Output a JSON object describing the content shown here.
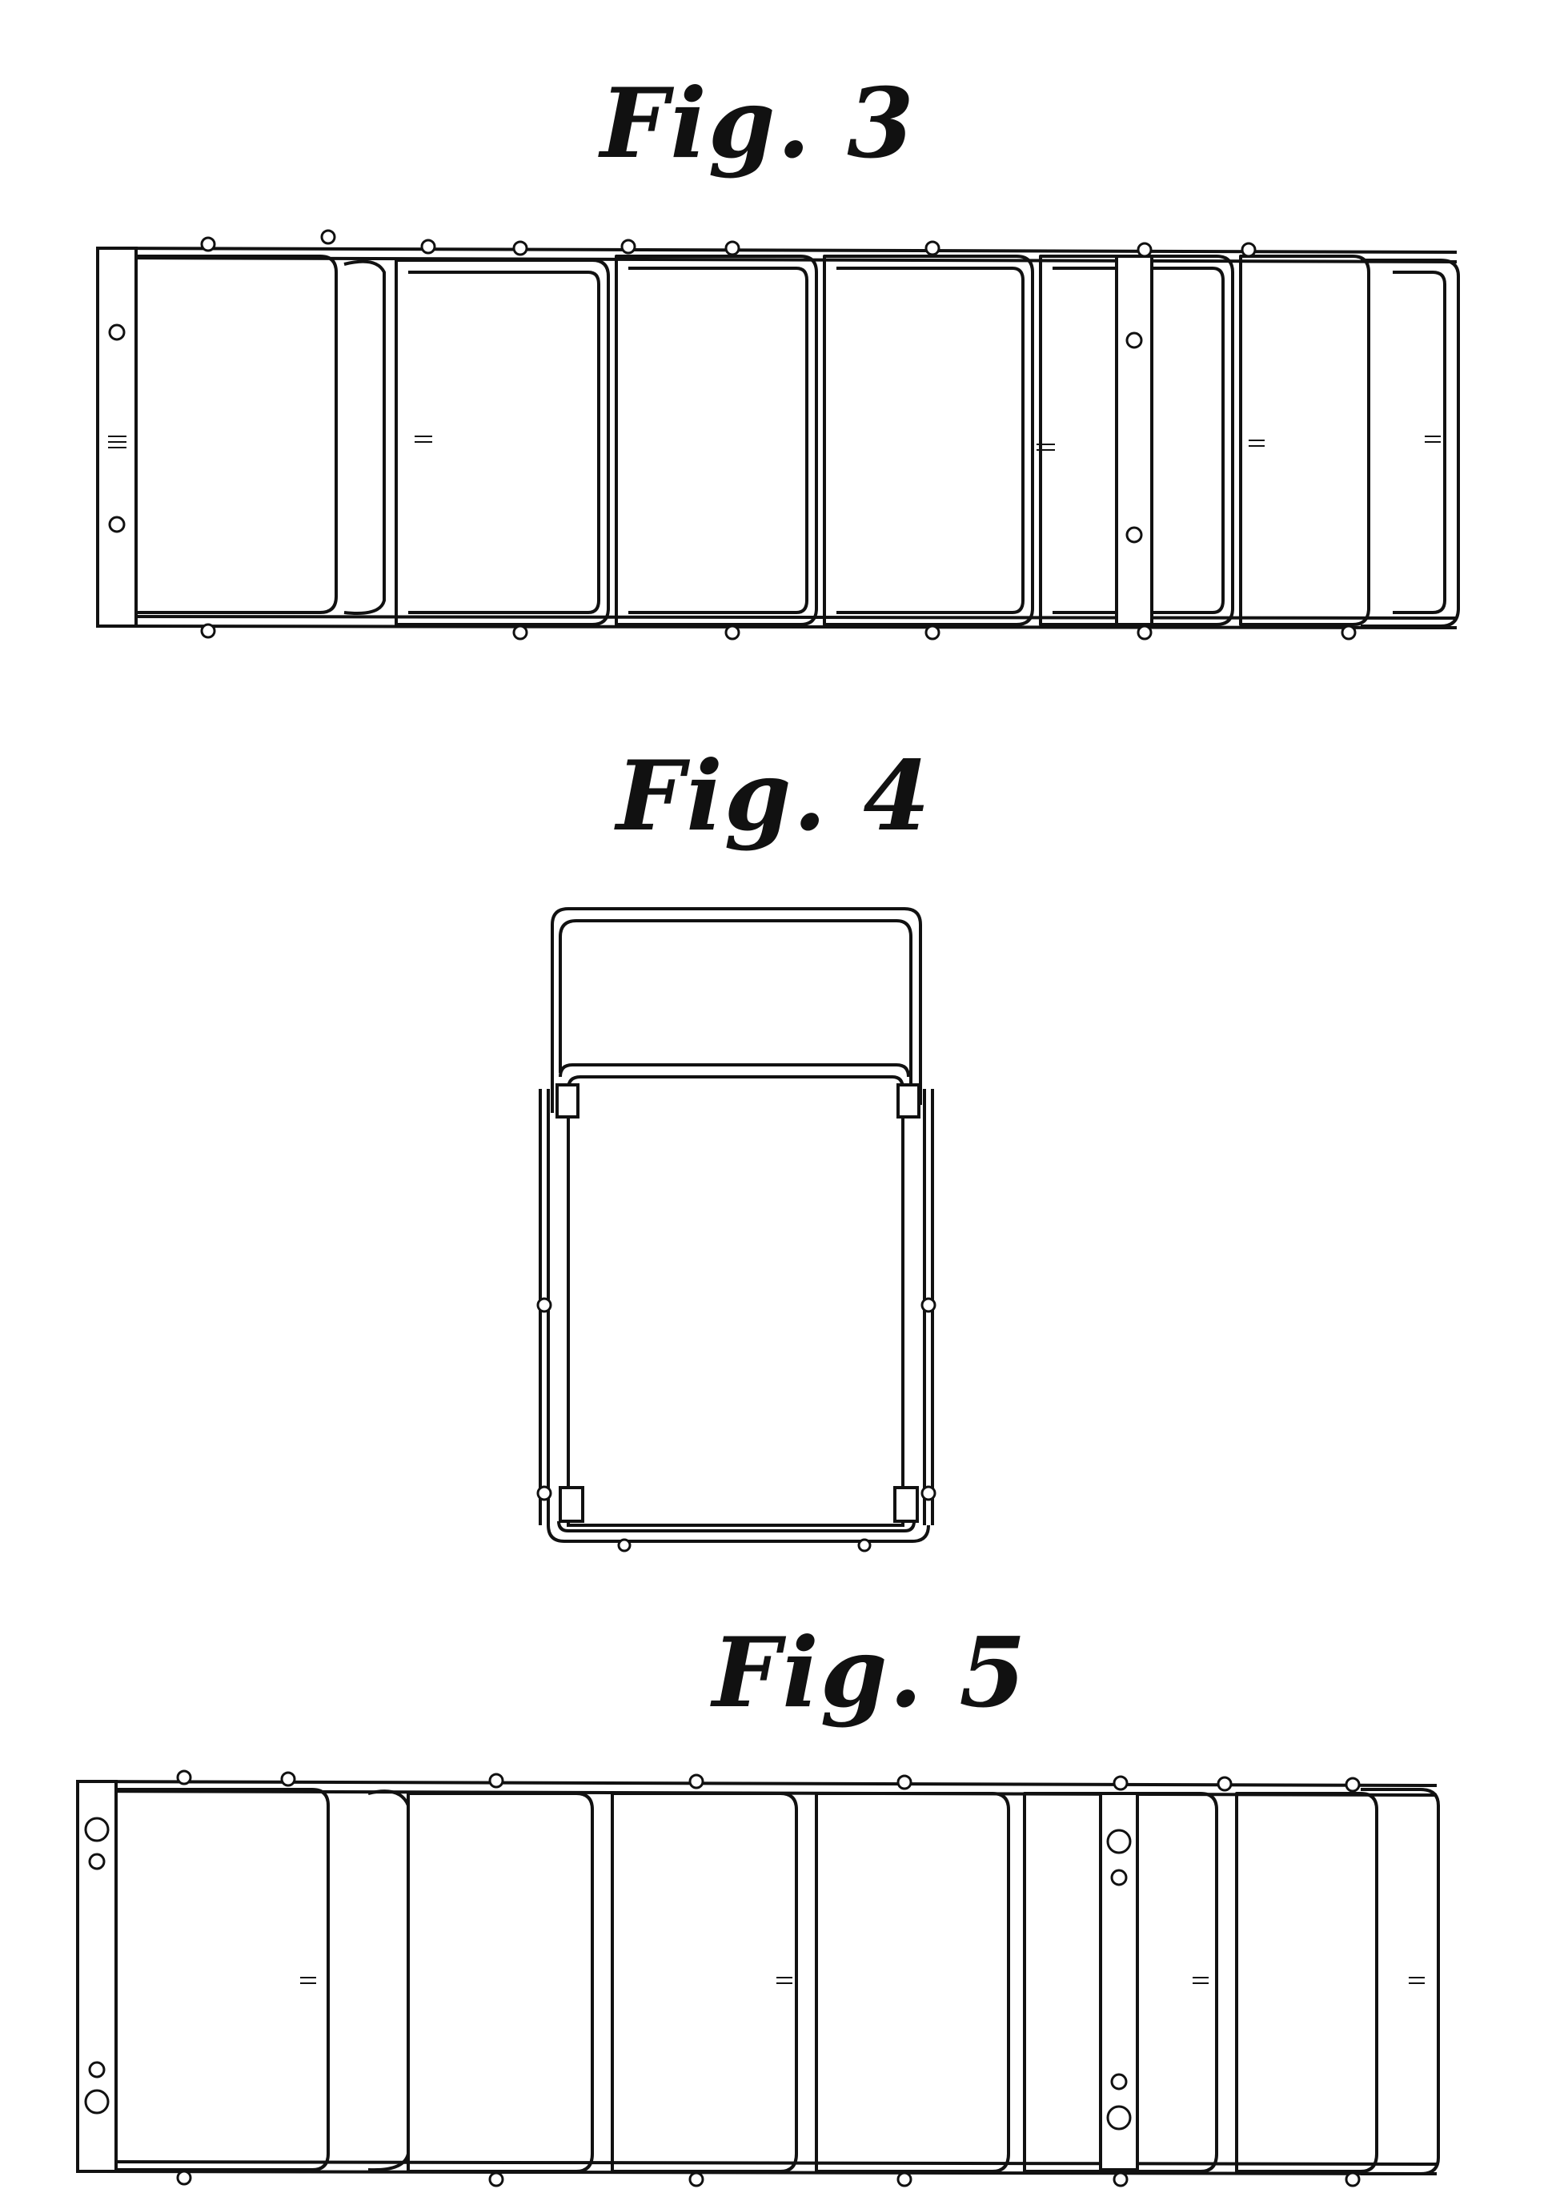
{
  "figures": [
    {
      "id": "fig3",
      "label": "Fig. 3"
    },
    {
      "id": "fig4",
      "label": "Fig. 4"
    },
    {
      "id": "fig5",
      "label": "Fig. 5"
    }
  ]
}
